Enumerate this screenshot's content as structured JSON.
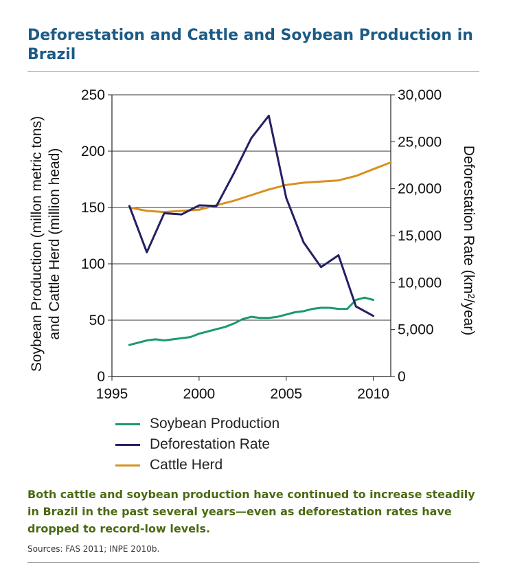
{
  "title": "Deforestation and Cattle and Soybean Production in Brazil",
  "caption": "Both cattle and soybean production have continued to increase steadily in Brazil in the past several years—even as deforestation rates have dropped to record-low levels.",
  "source": "Sources: FAS 2011; INPE 2010b.",
  "chart_data": {
    "type": "line",
    "ylabel_left_line1": "Soybean Production (millon metric tons)",
    "ylabel_left_line2": "and Cattle Herd (million head)",
    "ylabel_right": "Deforestation Rate (km²/year)",
    "xlim": [
      1995,
      2011
    ],
    "ylim_left": [
      0,
      250
    ],
    "ylim_right": [
      0,
      30000
    ],
    "x_ticks": [
      1995,
      2000,
      2005,
      2010
    ],
    "y_ticks_left": [
      0,
      50,
      100,
      150,
      200,
      250
    ],
    "y_ticks_right": [
      "0",
      "5,000",
      "10,000",
      "15,000",
      "20,000",
      "25,000",
      "30,000"
    ],
    "legend_position": "bottom-left",
    "grid": "horizontal",
    "series": [
      {
        "name": "Soybean Production",
        "axis": "left",
        "color": "#1a9a6a",
        "x": [
          1996,
          1996.5,
          1997,
          1997.5,
          1998,
          1998.5,
          1999,
          1999.5,
          2000,
          2000.5,
          2001,
          2001.5,
          2002,
          2002.5,
          2003,
          2003.5,
          2004,
          2004.5,
          2005,
          2005.5,
          2006,
          2006.5,
          2007,
          2007.5,
          2008,
          2008.5,
          2009,
          2009.5,
          2010
        ],
        "values": [
          28,
          30,
          32,
          33,
          32,
          33,
          34,
          35,
          38,
          40,
          42,
          44,
          47,
          51,
          53,
          52,
          52,
          53,
          55,
          57,
          58,
          60,
          61,
          61,
          60,
          60,
          68,
          70,
          68
        ]
      },
      {
        "name": "Deforestation Rate",
        "axis": "right",
        "color": "#232063",
        "x": [
          1996,
          1997,
          1998,
          1999,
          2000,
          2001,
          2002,
          2003,
          2004,
          2005,
          2006,
          2007,
          2008,
          2009,
          2010
        ],
        "values": [
          18161,
          13227,
          17383,
          17259,
          18226,
          18165,
          21651,
          25396,
          27772,
          19014,
          14286,
          11651,
          12911,
          7464,
          6451
        ]
      },
      {
        "name": "Cattle Herd",
        "axis": "left",
        "color": "#d9901e",
        "x": [
          1996,
          1997,
          1998,
          1999,
          2000,
          2001,
          2002,
          2003,
          2004,
          2005,
          2006,
          2007,
          2008,
          2009,
          2010,
          2011
        ],
        "values": [
          150,
          147,
          146,
          147,
          148,
          152,
          156,
          161,
          166,
          170,
          172,
          173,
          174,
          178,
          184,
          190
        ]
      }
    ]
  }
}
